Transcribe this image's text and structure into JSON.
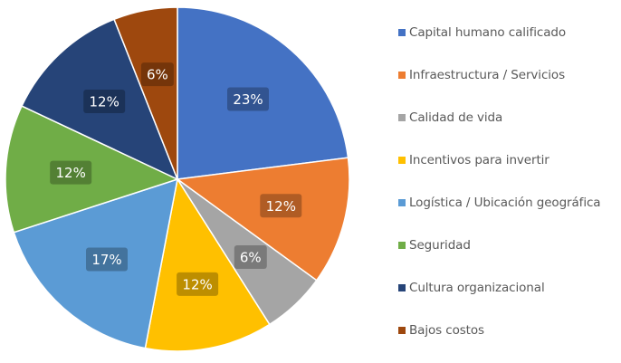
{
  "chart_data": {
    "type": "pie",
    "title": "",
    "start_angle_deg": 0,
    "direction": "clockwise",
    "slices": [
      {
        "label": "Capital humano calificado",
        "value": 23,
        "display": "23%",
        "color": "#4472C4"
      },
      {
        "label": "Infraestructura / Servicios",
        "value": 12,
        "display": "12%",
        "color": "#ED7D31"
      },
      {
        "label": "Calidad de vida",
        "value": 6,
        "display": "6%",
        "color": "#A5A5A5"
      },
      {
        "label": "Incentivos para invertir",
        "value": 12,
        "display": "12%",
        "color": "#FFC000"
      },
      {
        "label": "Logística / Ubicación geográfica",
        "value": 17,
        "display": "17%",
        "color": "#5B9BD5"
      },
      {
        "label": "Seguridad",
        "value": 12,
        "display": "12%",
        "color": "#70AD47"
      },
      {
        "label": "Cultura organizacional",
        "value": 12,
        "display": "12%",
        "color": "#264478"
      },
      {
        "label": "Bajos costos",
        "value": 6,
        "display": "6%",
        "color": "#9E480E"
      }
    ],
    "legend_position": "right",
    "data_labels": "percent"
  }
}
